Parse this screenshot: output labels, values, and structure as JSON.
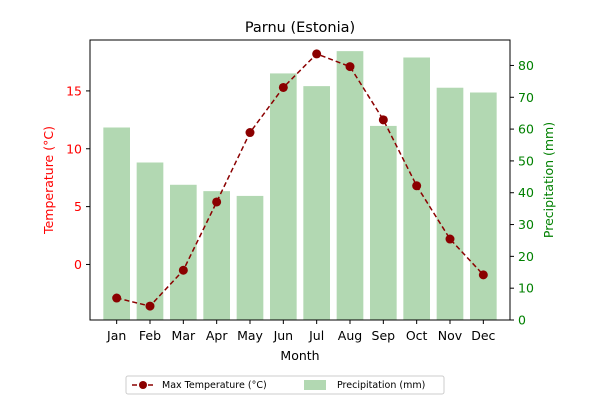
{
  "chart_data": {
    "type": "bar+line",
    "title": "Parnu (Estonia)",
    "xlabel": "Month",
    "categories": [
      "Jan",
      "Feb",
      "Mar",
      "Apr",
      "May",
      "Jun",
      "Jul",
      "Aug",
      "Sep",
      "Oct",
      "Nov",
      "Dec"
    ],
    "y_left": {
      "label": "Temperature (°C)",
      "range": [
        -4.8,
        19.4
      ],
      "ticks": [
        0,
        5,
        10,
        15
      ],
      "color": "#ff0000"
    },
    "y_right": {
      "label": "Precipitation (mm)",
      "range": [
        0,
        88
      ],
      "ticks": [
        0,
        10,
        20,
        30,
        40,
        50,
        60,
        70,
        80
      ],
      "color": "#008000"
    },
    "series": [
      {
        "name": "Max Temperature (°C)",
        "type": "line",
        "axis": "left",
        "line_style": "dashed",
        "marker": "circle",
        "color": "#8b0000",
        "values": [
          -2.9,
          -3.6,
          -0.5,
          5.4,
          11.4,
          15.3,
          18.2,
          17.1,
          12.5,
          6.8,
          2.2,
          -0.9
        ]
      },
      {
        "name": "Precipitation (mm)",
        "type": "bar",
        "axis": "right",
        "color": "#b2d8b2",
        "values": [
          60.5,
          49.5,
          42.5,
          40.5,
          39.0,
          77.5,
          73.5,
          84.5,
          61.0,
          82.5,
          73.0,
          71.5
        ]
      }
    ],
    "legend": {
      "placement": "bottom-center",
      "columns": 2
    },
    "grid": false
  }
}
